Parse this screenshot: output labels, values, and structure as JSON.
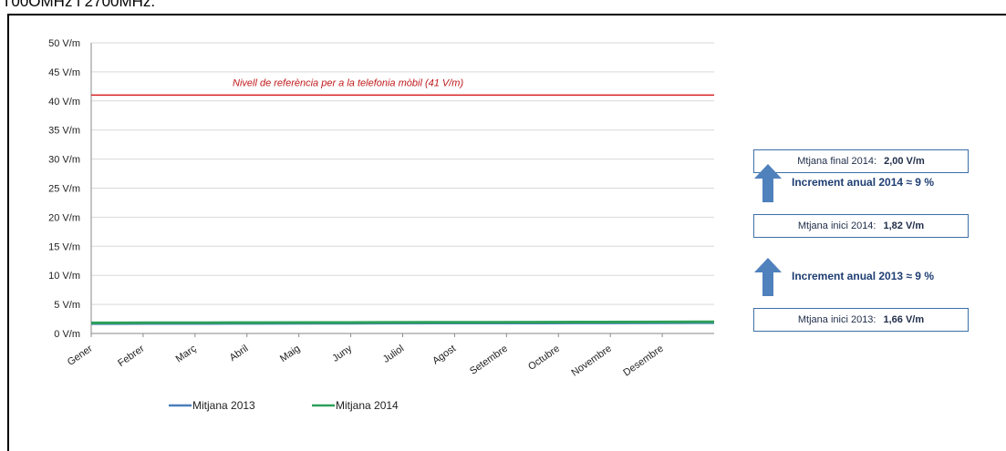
{
  "header": {
    "text": "T00OMHz i 2700MHz."
  },
  "chart_data": {
    "type": "line",
    "ylim": [
      0,
      50
    ],
    "yticks": [
      "50 V/m",
      "45 V/m",
      "40 V/m",
      "35 V/m",
      "30 V/m",
      "25 V/m",
      "20 V/m",
      "15 V/m",
      "10 V/m",
      "5 V/m",
      "0 V/m"
    ],
    "categories": [
      "Gener",
      "Febrer",
      "Març",
      "Abril",
      "Maig",
      "Juny",
      "Juliol",
      "Agost",
      "Setembre",
      "Octubre",
      "Novembre",
      "Desembre"
    ],
    "series": [
      {
        "name": "Mitjana 2013",
        "color": "#4a7ebb",
        "values": [
          1.66,
          1.68,
          1.7,
          1.71,
          1.72,
          1.74,
          1.75,
          1.76,
          1.77,
          1.79,
          1.8,
          1.82
        ]
      },
      {
        "name": "Mitjana 2014",
        "color": "#2ca05a",
        "values": [
          1.82,
          1.84,
          1.85,
          1.87,
          1.88,
          1.9,
          1.91,
          1.93,
          1.94,
          1.96,
          1.98,
          2.0
        ]
      }
    ],
    "reference_line": {
      "value": 41,
      "label": "Nivell de referència per a  la telefonia mòbil (41 V/m)",
      "color": "#d92020"
    },
    "grid": true,
    "legend_position": "bottom"
  },
  "annotations": {
    "final_2014": {
      "label": "Mtjana final 2014:",
      "value": "2,00 V/m"
    },
    "increment_2014": "Increment anual 2014 ≈  9 %",
    "inici_2014": {
      "label": "Mtjana inici  2014:",
      "value": "1,82 V/m"
    },
    "increment_2013": "Increment anual 2013 ≈  9 %",
    "inici_2013": {
      "label": "Mtjana inici  2013:",
      "value": "1,66 V/m"
    },
    "arrow_color": "#4f81bd"
  }
}
